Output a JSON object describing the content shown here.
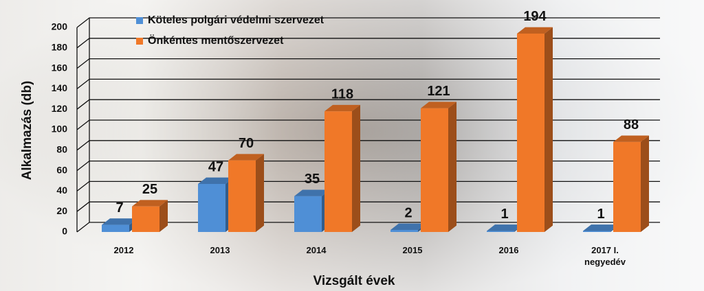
{
  "chart_data": {
    "type": "bar3d",
    "x_label": "Vizsgált évek",
    "y_label": "Alkalmazás (db)",
    "categories": [
      "2012",
      "2013",
      "2014",
      "2015",
      "2016",
      "2017 I. negyedév"
    ],
    "series": [
      {
        "name": "Köteles polgári védelmi szervezet",
        "color": "#4f8fd6",
        "values": [
          7,
          47,
          35,
          2,
          1,
          1
        ]
      },
      {
        "name": "Önkéntes mentőszervezet",
        "color": "#f07828",
        "values": [
          25,
          70,
          118,
          121,
          194,
          88
        ]
      }
    ],
    "ylim": [
      0,
      200
    ],
    "yticks": [
      0,
      20,
      40,
      60,
      80,
      100,
      120,
      140,
      160,
      180,
      200
    ],
    "grid": true
  }
}
